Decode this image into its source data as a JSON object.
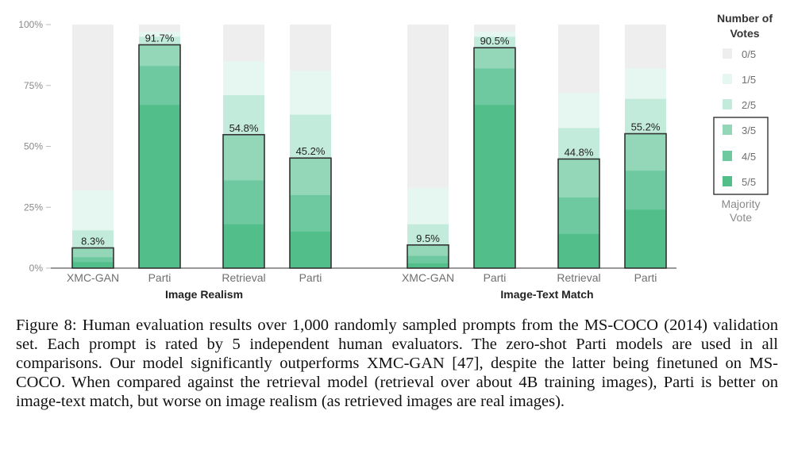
{
  "chart_data": {
    "type": "bar",
    "stacked": true,
    "yticks": [
      "0%",
      "25%",
      "50%",
      "75%",
      "100%"
    ],
    "ylim": [
      0,
      100
    ],
    "groups": [
      {
        "label": "Image Realism",
        "bars": [
          {
            "category": "XMC-GAN",
            "value_label": "8.3%",
            "majority": 8.3,
            "levels": {
              "5/5": 2.5,
              "4/5": 4.5,
              "3/5": 8.3,
              "2/5": 15.5,
              "1/5": 32,
              "0/5": 100
            }
          },
          {
            "category": "Parti",
            "value_label": "91.7%",
            "majority": 91.7,
            "levels": {
              "5/5": 67,
              "4/5": 83,
              "3/5": 91.7,
              "2/5": 95,
              "1/5": 97,
              "0/5": 100
            }
          },
          {
            "category": "Retrieval",
            "value_label": "54.8%",
            "majority": 54.8,
            "levels": {
              "5/5": 18,
              "4/5": 36,
              "3/5": 54.8,
              "2/5": 71,
              "1/5": 85,
              "0/5": 100
            }
          },
          {
            "category": "Parti",
            "value_label": "45.2%",
            "majority": 45.2,
            "levels": {
              "5/5": 15,
              "4/5": 30,
              "3/5": 45.2,
              "2/5": 63,
              "1/5": 81,
              "0/5": 100
            }
          }
        ]
      },
      {
        "label": "Image-Text Match",
        "bars": [
          {
            "category": "XMC-GAN",
            "value_label": "9.5%",
            "majority": 9.5,
            "levels": {
              "5/5": 2,
              "4/5": 5,
              "3/5": 9.5,
              "2/5": 18,
              "1/5": 33,
              "0/5": 100
            }
          },
          {
            "category": "Parti",
            "value_label": "90.5%",
            "majority": 90.5,
            "levels": {
              "5/5": 67,
              "4/5": 82,
              "3/5": 90.5,
              "2/5": 95,
              "1/5": 97,
              "0/5": 100
            }
          },
          {
            "category": "Retrieval",
            "value_label": "44.8%",
            "majority": 44.8,
            "levels": {
              "5/5": 14,
              "4/5": 29,
              "3/5": 44.8,
              "2/5": 57.5,
              "1/5": 72,
              "0/5": 100
            }
          },
          {
            "category": "Parti",
            "value_label": "55.2%",
            "majority": 55.2,
            "levels": {
              "5/5": 24,
              "4/5": 40,
              "3/5": 55.2,
              "2/5": 69.5,
              "1/5": 82,
              "0/5": 100
            }
          }
        ]
      }
    ],
    "legend": {
      "title_line1": "Number of",
      "title_line2": "Votes",
      "items": [
        {
          "label": "0/5",
          "color": "#eeeeee"
        },
        {
          "label": "1/5",
          "color": "#e6f7f1"
        },
        {
          "label": "2/5",
          "color": "#c2ebdb"
        },
        {
          "label": "3/5",
          "color": "#93d6b8"
        },
        {
          "label": "4/5",
          "color": "#6fc9a0"
        },
        {
          "label": "5/5",
          "color": "#52bf8a"
        }
      ],
      "majority_line1": "Majority",
      "majority_line2": "Vote",
      "placement": "right"
    },
    "colors": {
      "outline": "#333333",
      "axis": "#bbbbbb"
    }
  },
  "caption": "Figure 8: Human evaluation results over 1,000 randomly sampled prompts from the MS-COCO (2014) validation set. Each prompt is rated by 5 independent human evaluators. The zero-shot Parti models are used in all comparisons. Our model significantly outperforms XMC-GAN [47], despite the latter being finetuned on MS-COCO. When compared against the retrieval model (retrieval over about 4B training images), Parti is better on image-text match, but worse on image realism (as retrieved images are real images)."
}
